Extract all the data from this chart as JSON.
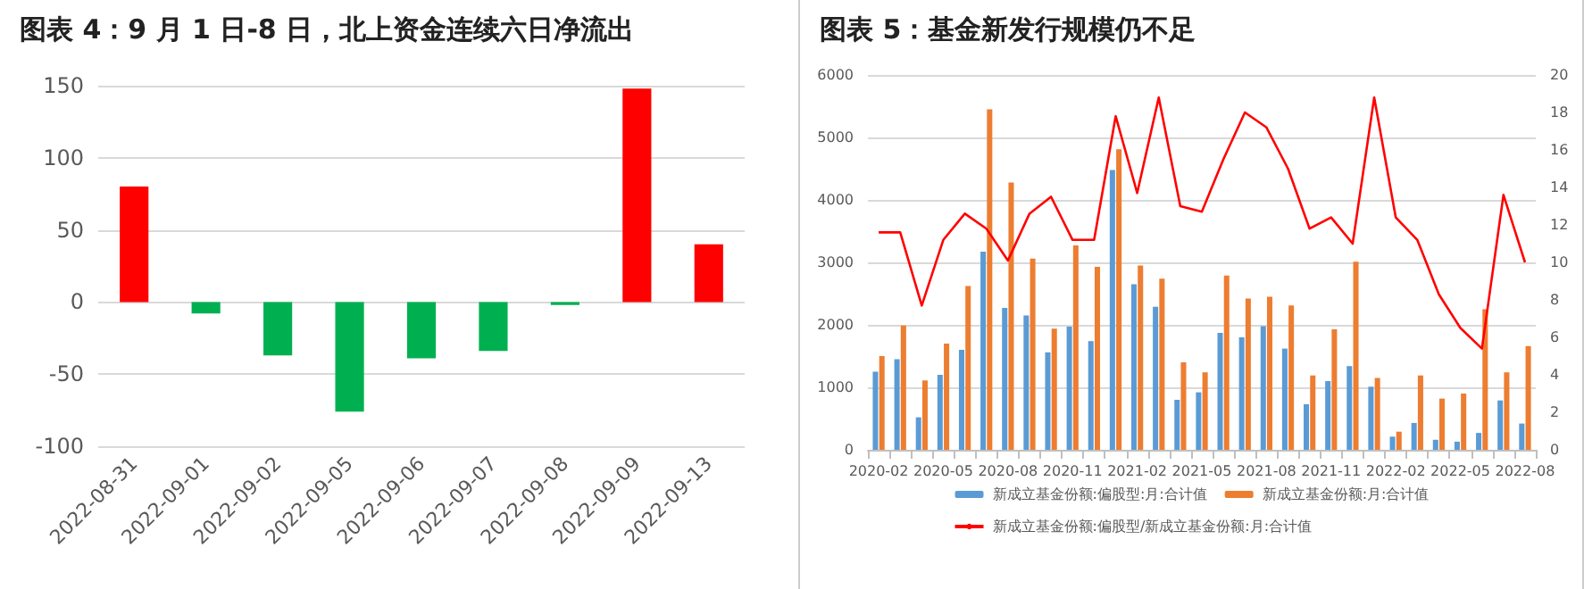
{
  "chart_data": [
    {
      "type": "bar",
      "title": "图表 4：9 月 1 日-8 日，北上资金连续六日净流出",
      "categories": [
        "2022-08-31",
        "2022-09-01",
        "2022-09-02",
        "2022-09-05",
        "2022-09-06",
        "2022-09-07",
        "2022-09-08",
        "2022-09-09",
        "2022-09-13"
      ],
      "values": [
        80,
        -8,
        -37,
        -76,
        -39,
        -34,
        -2,
        148,
        40
      ],
      "colors": [
        "#ff0000",
        "#00b050",
        "#00b050",
        "#00b050",
        "#00b050",
        "#00b050",
        "#00b050",
        "#ff0000",
        "#ff0000"
      ],
      "ylim": [
        -100,
        150
      ],
      "yticks": [
        -100,
        -50,
        0,
        50,
        100,
        150
      ],
      "grid": "y",
      "legend": false
    },
    {
      "type": "bar",
      "title": "图表 5：基金新发行规模仍不足",
      "categories": [
        "2020-02",
        null,
        null,
        "2020-05",
        null,
        null,
        "2020-08",
        null,
        null,
        "2020-11",
        null,
        null,
        "2021-02",
        null,
        null,
        "2021-05",
        null,
        null,
        "2021-08",
        null,
        null,
        "2021-11",
        null,
        null,
        "2022-02",
        null,
        null,
        "2022-05",
        null,
        null,
        "2022-08"
      ],
      "series": [
        {
          "name": "新成立基金份额:偏股型:月:合计值",
          "color": "#5b9bd5",
          "values": [
            1250,
            1450,
            520,
            1200,
            1600,
            3170,
            2270,
            2150,
            1560,
            1970,
            1740,
            4480,
            2650,
            2290,
            800,
            920,
            1870,
            1800,
            1980,
            1620,
            730,
            1100,
            1340,
            1010,
            210,
            430,
            160,
            130,
            270,
            790,
            420
          ]
        },
        {
          "name": "新成立基金份额:月:合计值",
          "color": "#ed7d31",
          "values": [
            1500,
            1990,
            1110,
            1700,
            2620,
            5450,
            4280,
            3060,
            1940,
            3270,
            2930,
            4810,
            2950,
            2740,
            1400,
            1240,
            2790,
            2420,
            2450,
            2310,
            1190,
            1930,
            3010,
            1150,
            290,
            1190,
            820,
            900,
            2250,
            1240,
            1660
          ]
        },
        {
          "name": "新成立基金份额:偏股型/新成立基金份额:月:合计值",
          "type": "line",
          "axis": "y2",
          "color": "#ff0000",
          "values": [
            11.6,
            11.6,
            7.7,
            11.2,
            12.6,
            11.8,
            10.1,
            12.6,
            13.5,
            11.2,
            11.2,
            17.8,
            13.7,
            18.8,
            13.0,
            12.7,
            15.5,
            18.0,
            17.2,
            15.0,
            11.8,
            12.4,
            11.0,
            18.8,
            12.4,
            11.2,
            8.3,
            6.5,
            5.4,
            13.6,
            10.0
          ]
        }
      ],
      "ylim": [
        0,
        6000
      ],
      "yticks": [
        0,
        1000,
        2000,
        3000,
        4000,
        5000,
        6000
      ],
      "y2lim": [
        0,
        20
      ],
      "y2ticks": [
        0,
        2,
        4,
        6,
        8,
        10,
        12,
        14,
        16,
        18,
        20
      ],
      "grid": "y",
      "legend": "bottom",
      "marker": "none",
      "line_style": "solid"
    }
  ]
}
